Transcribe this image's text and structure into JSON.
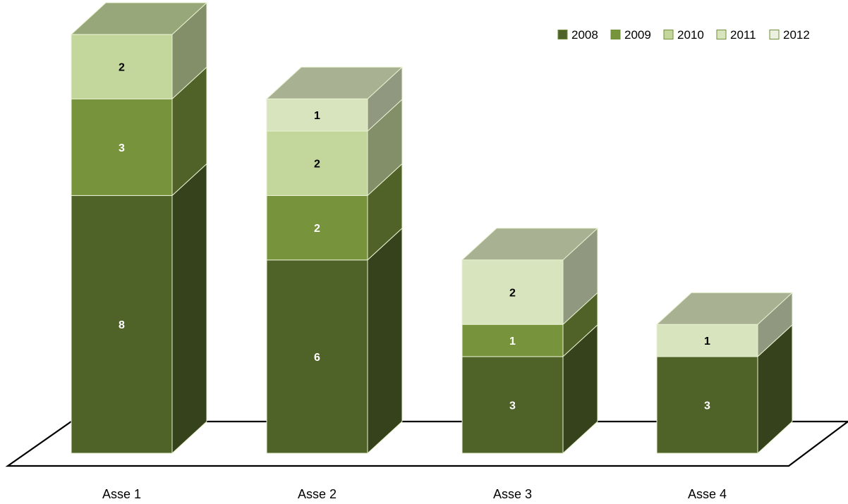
{
  "chart_data": {
    "type": "bar",
    "stacked": true,
    "three_d": true,
    "title": "",
    "xlabel": "",
    "ylabel": "",
    "categories": [
      "Asse 1",
      "Asse 2",
      "Asse 3",
      "Asse 4"
    ],
    "series": [
      {
        "name": "2008",
        "values": [
          8,
          6,
          3,
          3
        ],
        "color": "#4F6228"
      },
      {
        "name": "2009",
        "values": [
          3,
          2,
          1,
          0
        ],
        "color": "#77933C"
      },
      {
        "name": "2010",
        "values": [
          2,
          2,
          0,
          0
        ],
        "color": "#C3D69B"
      },
      {
        "name": "2011",
        "values": [
          0,
          1,
          2,
          1
        ],
        "color": "#D7E4BD"
      },
      {
        "name": "2012",
        "values": [
          0,
          0,
          0,
          0
        ],
        "color": "#EBF1DE"
      }
    ],
    "legend_position": "top-right",
    "grid": false,
    "data_label_colors": {
      "dark_segments": "#FFFFFF",
      "light_segments": "#000000"
    }
  }
}
